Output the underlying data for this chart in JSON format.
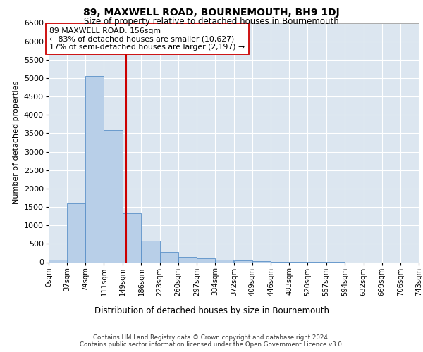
{
  "title": "89, MAXWELL ROAD, BOURNEMOUTH, BH9 1DJ",
  "subtitle": "Size of property relative to detached houses in Bournemouth",
  "xlabel": "Distribution of detached houses by size in Bournemouth",
  "ylabel": "Number of detached properties",
  "property_size": 156,
  "property_label": "89 MAXWELL ROAD: 156sqm",
  "annotation_line1": "← 83% of detached houses are smaller (10,627)",
  "annotation_line2": "17% of semi-detached houses are larger (2,197) →",
  "bar_color": "#b8cfe8",
  "bar_edge_color": "#5a90c8",
  "vline_color": "#cc0000",
  "bg_color": "#dce6f0",
  "grid_color": "#ffffff",
  "categories": [
    "0sqm",
    "37sqm",
    "74sqm",
    "111sqm",
    "149sqm",
    "186sqm",
    "223sqm",
    "260sqm",
    "297sqm",
    "334sqm",
    "372sqm",
    "409sqm",
    "446sqm",
    "483sqm",
    "520sqm",
    "557sqm",
    "594sqm",
    "632sqm",
    "669sqm",
    "706sqm",
    "743sqm"
  ],
  "bin_edges": [
    0,
    37,
    74,
    111,
    149,
    186,
    223,
    260,
    297,
    334,
    372,
    409,
    446,
    483,
    520,
    557,
    594,
    632,
    669,
    706,
    743
  ],
  "values": [
    75,
    1600,
    5050,
    3580,
    1320,
    590,
    270,
    145,
    110,
    70,
    50,
    28,
    10,
    4,
    2,
    1,
    0,
    0,
    0,
    0
  ],
  "ylim": [
    0,
    6500
  ],
  "yticks": [
    0,
    500,
    1000,
    1500,
    2000,
    2500,
    3000,
    3500,
    4000,
    4500,
    5000,
    5500,
    6000,
    6500
  ],
  "footer_line1": "Contains HM Land Registry data © Crown copyright and database right 2024.",
  "footer_line2": "Contains public sector information licensed under the Open Government Licence v3.0."
}
